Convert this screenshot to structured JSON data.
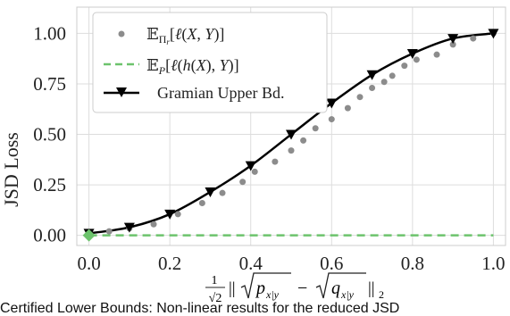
{
  "chart_data": {
    "type": "line",
    "ylabel": "JSD Loss",
    "xlabel": "1/√2 ||√p_{x|y} − √q_{x|y}||_2",
    "xlim": [
      -0.03,
      1.03
    ],
    "ylim": [
      -0.05,
      1.13
    ],
    "x_ticks": [
      "0.0",
      "0.2",
      "0.4",
      "0.6",
      "0.8",
      "1.0"
    ],
    "x_tick_values": [
      0.0,
      0.2,
      0.4,
      0.6,
      0.8,
      1.0
    ],
    "y_ticks": [
      "0.00",
      "0.25",
      "0.50",
      "0.75",
      "1.00"
    ],
    "y_tick_values": [
      0.0,
      0.25,
      0.5,
      0.75,
      1.0
    ],
    "grid": true,
    "legend_position": "upper-left",
    "series": [
      {
        "name": "E_{Π_r}[ℓ(X, Y)]",
        "style": "scatter",
        "color": "#8c8c8c",
        "x": [
          0.0,
          0.05,
          0.1,
          0.16,
          0.22,
          0.28,
          0.33,
          0.38,
          0.41,
          0.46,
          0.5,
          0.53,
          0.56,
          0.6,
          0.64,
          0.67,
          0.7,
          0.73,
          0.75,
          0.78,
          0.81,
          0.86,
          0.9,
          0.95,
          1.0
        ],
        "y": [
          0.015,
          0.02,
          0.035,
          0.055,
          0.105,
          0.16,
          0.21,
          0.265,
          0.315,
          0.365,
          0.42,
          0.47,
          0.53,
          0.575,
          0.63,
          0.685,
          0.73,
          0.76,
          0.79,
          0.84,
          0.87,
          0.895,
          0.945,
          0.975,
          1.0
        ]
      },
      {
        "name": "E_P[ℓ(h(X), Y)]",
        "style": "dashed",
        "color": "#6cc36c",
        "x": [
          0.0,
          1.0
        ],
        "y": [
          0.0,
          0.0
        ]
      },
      {
        "name": "Gramian Upper Bd.",
        "style": "line-with-markers",
        "color": "#000000",
        "marker": "triangle-down",
        "x": [
          0.0,
          0.1,
          0.2,
          0.3,
          0.4,
          0.5,
          0.6,
          0.7,
          0.8,
          0.9,
          1.0
        ],
        "y": [
          0.01,
          0.04,
          0.105,
          0.215,
          0.345,
          0.5,
          0.655,
          0.795,
          0.9,
          0.975,
          1.0
        ]
      }
    ],
    "marker_point": {
      "x": 0.0,
      "y": 0.0,
      "color": "#6cc36c"
    }
  },
  "caption": "Certified Lower Bounds: Non-linear results for the reduced JSD"
}
